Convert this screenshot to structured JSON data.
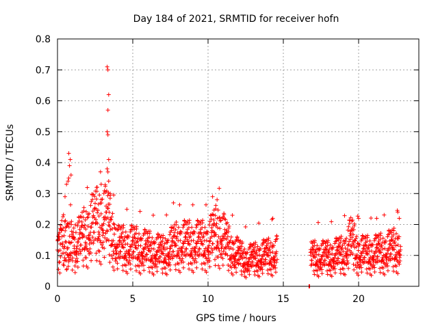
{
  "chart_data": {
    "type": "scatter",
    "title": "Day 184 of 2021, SRMTID for receiver hofn",
    "xlabel": "GPS time / hours",
    "ylabel": "SRMTID / TECUs",
    "xlim": [
      0,
      24
    ],
    "ylim": [
      0,
      0.8
    ],
    "xticks": [
      0,
      5,
      10,
      15,
      20
    ],
    "xtick_labels": [
      "0",
      "5",
      "10",
      "15",
      "20"
    ],
    "yticks": [
      0,
      0.1,
      0.2,
      0.3,
      0.4,
      0.5,
      0.6,
      0.7,
      0.8
    ],
    "ytick_labels": [
      "0",
      "0.1",
      "0.2",
      "0.3",
      "0.4",
      "0.5",
      "0.6",
      "0.7",
      "0.8"
    ],
    "grid": true,
    "marker": "plus",
    "color": "#ff0000",
    "gap_hours": [
      14.6,
      16.8
    ],
    "baseline_profile": [
      [
        0.0,
        0.11
      ],
      [
        0.5,
        0.15
      ],
      [
        1.0,
        0.12
      ],
      [
        1.5,
        0.14
      ],
      [
        2.0,
        0.17
      ],
      [
        2.5,
        0.19
      ],
      [
        3.0,
        0.21
      ],
      [
        3.5,
        0.18
      ],
      [
        4.0,
        0.12
      ],
      [
        5.0,
        0.12
      ],
      [
        6.0,
        0.11
      ],
      [
        7.0,
        0.1
      ],
      [
        8.0,
        0.13
      ],
      [
        9.0,
        0.13
      ],
      [
        10.0,
        0.13
      ],
      [
        10.7,
        0.17
      ],
      [
        11.5,
        0.11
      ],
      [
        12.5,
        0.08
      ],
      [
        13.5,
        0.09
      ],
      [
        14.6,
        0.1
      ],
      [
        16.8,
        0.09
      ],
      [
        18.0,
        0.09
      ],
      [
        19.0,
        0.1
      ],
      [
        19.5,
        0.14
      ],
      [
        20.0,
        0.1
      ],
      [
        21.0,
        0.1
      ],
      [
        22.0,
        0.11
      ],
      [
        22.8,
        0.12
      ]
    ],
    "spike_points": [
      [
        0.7,
        0.34
      ],
      [
        0.75,
        0.35
      ],
      [
        0.8,
        0.39
      ],
      [
        0.85,
        0.41
      ],
      [
        0.75,
        0.43
      ],
      [
        0.6,
        0.33
      ],
      [
        0.9,
        0.36
      ],
      [
        0.5,
        0.29
      ],
      [
        3.3,
        0.71
      ],
      [
        3.35,
        0.7
      ],
      [
        3.4,
        0.62
      ],
      [
        3.35,
        0.57
      ],
      [
        3.3,
        0.5
      ],
      [
        3.35,
        0.49
      ],
      [
        3.4,
        0.41
      ],
      [
        3.35,
        0.37
      ],
      [
        3.3,
        0.38
      ],
      [
        3.4,
        0.34
      ],
      [
        2.6,
        0.32
      ],
      [
        2.9,
        0.33
      ],
      [
        3.5,
        0.3
      ],
      [
        7.7,
        0.27
      ],
      [
        10.3,
        0.29
      ],
      [
        10.6,
        0.28
      ],
      [
        14.3,
        0.22
      ],
      [
        20.0,
        0.22
      ],
      [
        21.2,
        0.22
      ],
      [
        22.6,
        0.24
      ],
      [
        22.7,
        0.22
      ],
      [
        16.7,
        0.0
      ],
      [
        16.75,
        0.0
      ]
    ]
  }
}
